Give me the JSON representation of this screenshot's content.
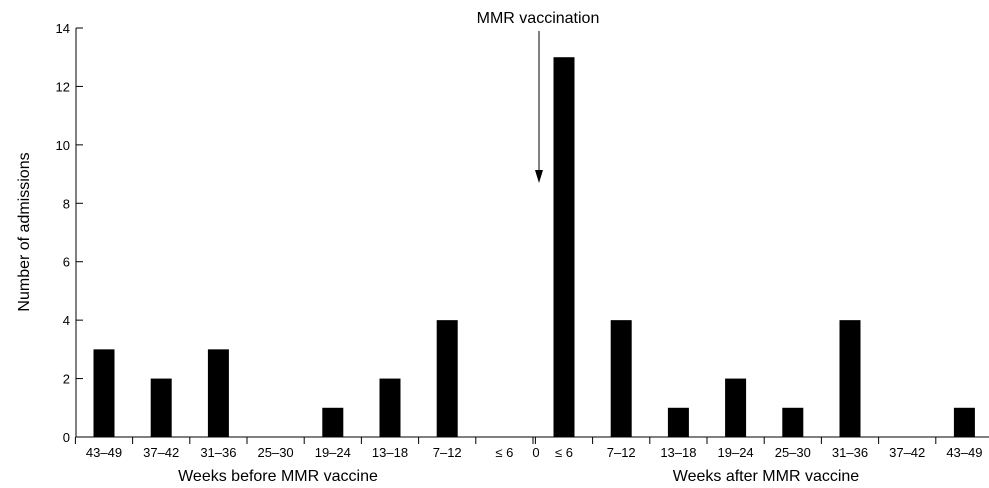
{
  "chart_data": {
    "type": "bar",
    "ylabel": "Number of admissions",
    "ylim": [
      0,
      14
    ],
    "yticks": [
      0,
      2,
      4,
      6,
      8,
      10,
      12,
      14
    ],
    "groups": [
      {
        "label": "Weeks before MMR vaccine",
        "categories": [
          "43–49",
          "37–42",
          "31–36",
          "25–30",
          "19–24",
          "13–18",
          "7–12",
          "≤ 6"
        ],
        "values": [
          3,
          2,
          3,
          0,
          1,
          2,
          4,
          0
        ]
      },
      {
        "label": "Weeks after MMR vaccine",
        "categories": [
          "≤ 6",
          "7–12",
          "13–18",
          "19–24",
          "25–30",
          "31–36",
          "37–42",
          "43–49"
        ],
        "values": [
          13,
          4,
          1,
          2,
          1,
          4,
          0,
          1
        ]
      }
    ],
    "zero_label": "0",
    "annotation": {
      "text": "MMR vaccination",
      "points_to": "0"
    },
    "grid": false,
    "colors": {
      "bar": "#000000",
      "axis": "#000000"
    }
  }
}
